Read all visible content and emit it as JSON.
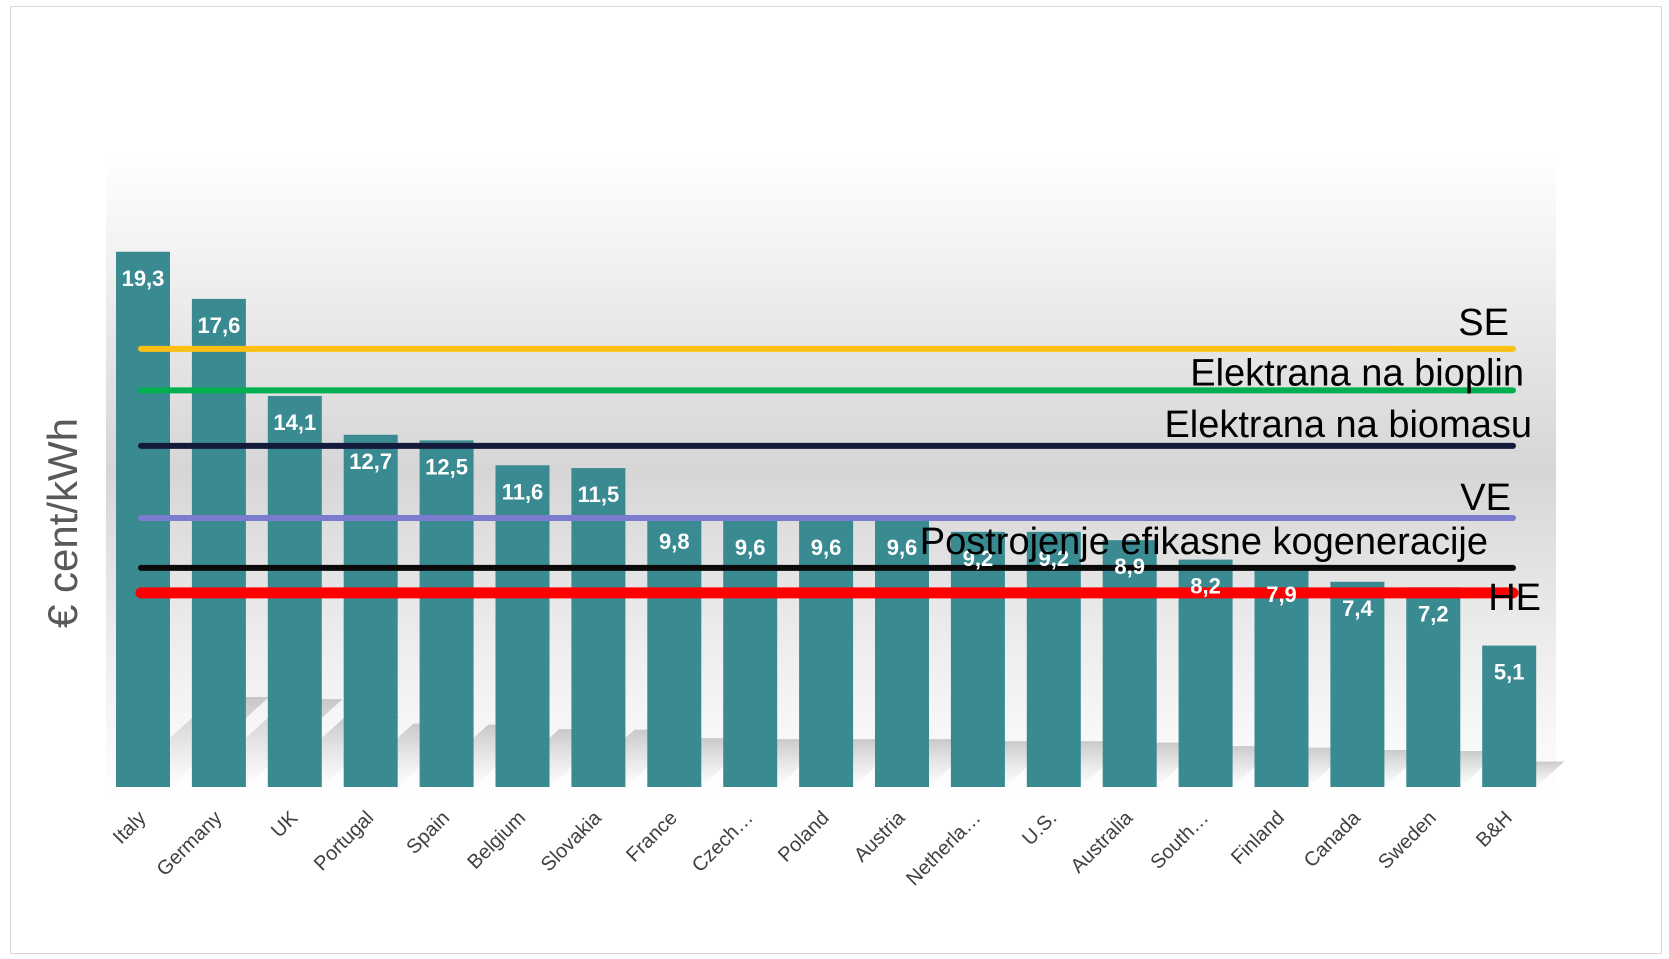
{
  "chart_data": {
    "type": "bar",
    "ylabel": "€ cent/kWh",
    "categories": [
      "Italy",
      "Germany",
      "UK",
      "Portugal",
      "Spain",
      "Belgium",
      "Slovakia",
      "France",
      "Czech…",
      "Poland",
      "Austria",
      "Netherla…",
      "U.S.",
      "Australia",
      "South…",
      "Finland",
      "Canada",
      "Sweden",
      "B&H"
    ],
    "values": [
      19.3,
      17.6,
      14.1,
      12.7,
      12.5,
      11.6,
      11.5,
      9.8,
      9.6,
      9.6,
      9.6,
      9.2,
      9.2,
      8.9,
      8.2,
      7.9,
      7.4,
      7.2,
      5.1
    ],
    "value_labels": [
      "19,3",
      "17,6",
      "14,1",
      "12,7",
      "12,5",
      "11,6",
      "11,5",
      "9,8",
      "9,6",
      "9,6",
      "9,6",
      "9,2",
      "9,2",
      "8,9",
      "8,2",
      "7,9",
      "7,4",
      "7,2",
      "5,1"
    ],
    "ylim": [
      0,
      24.7
    ],
    "grid": false,
    "bar_color": "#3a8a92",
    "reference_lines": [
      {
        "label": "SE",
        "value": 15.8,
        "color": "#fbbf15"
      },
      {
        "label": "Elektrana na bioplin",
        "value": 14.3,
        "color": "#00b050"
      },
      {
        "label": "Elektrana na biomasu",
        "value": 12.3,
        "color": "#141a3c"
      },
      {
        "label": "VE",
        "value": 9.7,
        "color": "#7b7bd0"
      },
      {
        "label": "Postrojenje efikasne kogeneracije",
        "value": 7.9,
        "color": "#0a0a0a"
      },
      {
        "label": "HE",
        "value": 7.0,
        "color": "#ff0000"
      }
    ]
  }
}
